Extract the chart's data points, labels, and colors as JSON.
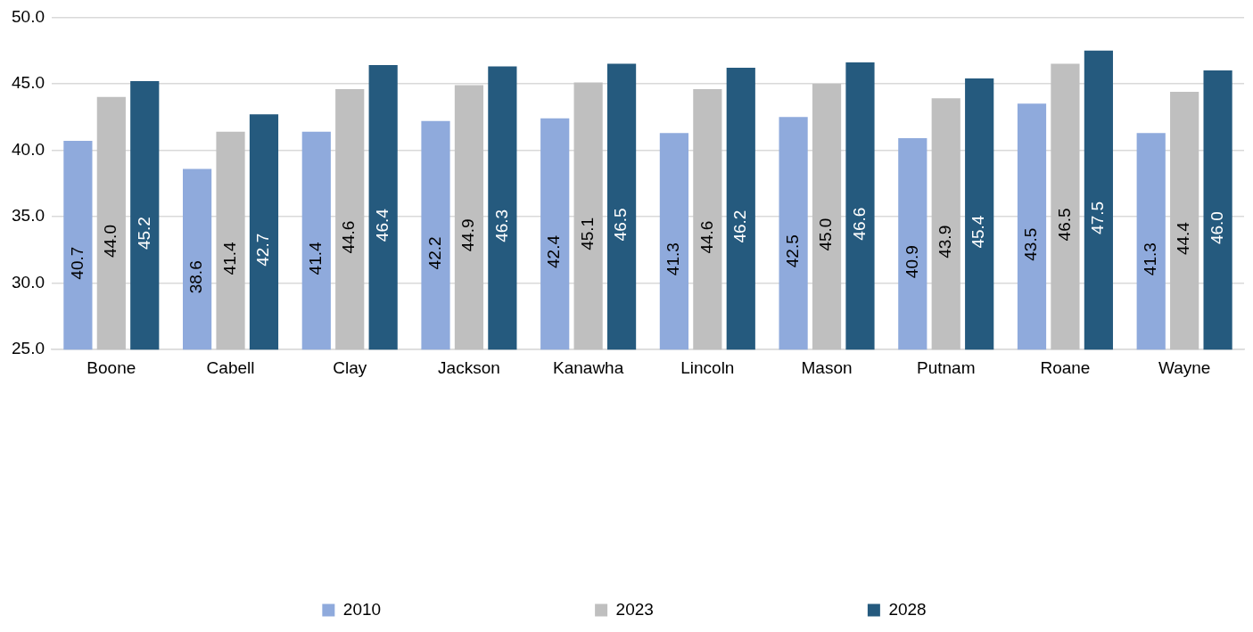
{
  "chart_data": {
    "type": "bar",
    "categories": [
      "Boone",
      "Cabell",
      "Clay",
      "Jackson",
      "Kanawha",
      "Lincoln",
      "Mason",
      "Putnam",
      "Roane",
      "Wayne"
    ],
    "series": [
      {
        "name": "2010",
        "color": "#8faadc",
        "values": [
          40.7,
          38.6,
          41.4,
          42.2,
          42.4,
          41.3,
          42.5,
          40.9,
          43.5,
          41.3
        ],
        "value_labels": [
          "40.7",
          "38.6",
          "41.4",
          "42.2",
          "42.4",
          "41.3",
          "42.5",
          "40.9",
          "43.5",
          "41.3"
        ]
      },
      {
        "name": "2023",
        "color": "#bfbfbf",
        "values": [
          44.0,
          41.4,
          44.6,
          44.9,
          45.1,
          44.6,
          45.0,
          43.9,
          46.5,
          44.4
        ],
        "value_labels": [
          "44.0",
          "41.4",
          "44.6",
          "44.9",
          "45.1",
          "44.6",
          "45.0",
          "43.9",
          "46.5",
          "44.4"
        ]
      },
      {
        "name": "2028",
        "color": "#255a7e",
        "values": [
          45.2,
          42.7,
          46.4,
          46.3,
          46.5,
          46.2,
          46.6,
          45.4,
          47.5,
          46.0
        ],
        "value_labels": [
          "45.2",
          "42.7",
          "46.4",
          "46.3",
          "46.5",
          "46.2",
          "46.6",
          "45.4",
          "47.5",
          "46.0"
        ]
      }
    ],
    "ylim": [
      25,
      50
    ],
    "yticks": [
      {
        "value": 25,
        "label": "25.0"
      },
      {
        "value": 30,
        "label": "30.0"
      },
      {
        "value": 35,
        "label": "35.0"
      },
      {
        "value": 40,
        "label": "40.0"
      },
      {
        "value": 45,
        "label": "45.0"
      },
      {
        "value": 50,
        "label": "50.0"
      }
    ],
    "grid": "y",
    "legend": "bottom"
  }
}
